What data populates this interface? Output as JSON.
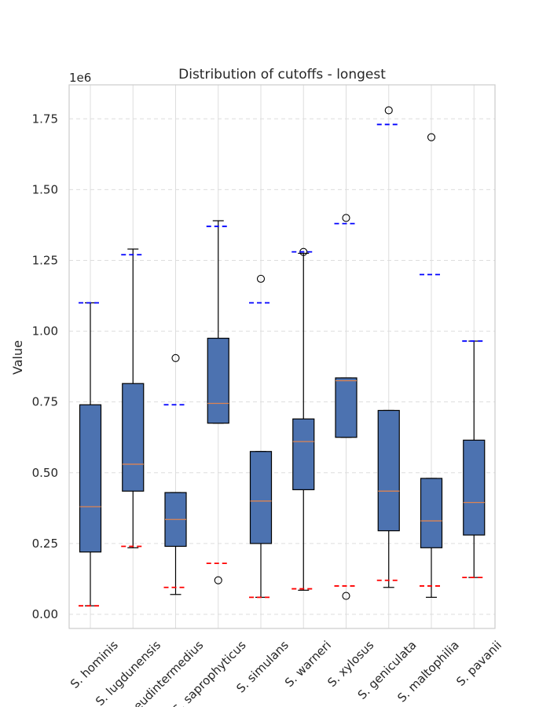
{
  "chart_data": {
    "type": "box",
    "title": "Distribution of cutoffs - longest",
    "ylabel": "Value",
    "xlabel": "",
    "y_offset_label": "1e6",
    "ylim": [
      -0.05,
      1.87
    ],
    "yticks": [
      0.0,
      0.25,
      0.5,
      0.75,
      1.0,
      1.25,
      1.5,
      1.75
    ],
    "ytick_labels": [
      "0.00",
      "0.25",
      "0.50",
      "0.75",
      "1.00",
      "1.25",
      "1.50",
      "1.75"
    ],
    "grid": true,
    "colors": {
      "box_fill": "#4c72b0",
      "median": "#dd8452",
      "min_marker": "#ff0000",
      "max_marker": "#0000ff",
      "grid": "#dddddd",
      "frame": "#cccccc"
    },
    "categories": [
      "S. hominis",
      "S. lugdunensis",
      "S. pseudintermedius",
      "S. saprophyticus",
      "S. simulans",
      "S. warneri",
      "S. xylosus",
      "S. geniculata",
      "S. maltophilia",
      "S. pavanii"
    ],
    "boxes": [
      {
        "whisker_low": 0.03,
        "q1": 0.22,
        "median": 0.38,
        "q3": 0.74,
        "whisker_high": 1.1,
        "outliers": [],
        "min_marker": 0.03,
        "max_marker": 1.1
      },
      {
        "whisker_low": 0.235,
        "q1": 0.435,
        "median": 0.53,
        "q3": 0.815,
        "whisker_high": 1.29,
        "outliers": [],
        "min_marker": 0.24,
        "max_marker": 1.27
      },
      {
        "whisker_low": 0.07,
        "q1": 0.24,
        "median": 0.335,
        "q3": 0.43,
        "whisker_high": 0.43,
        "outliers": [
          0.905
        ],
        "min_marker": 0.095,
        "max_marker": 0.74
      },
      {
        "whisker_low": 0.675,
        "q1": 0.675,
        "median": 0.745,
        "q3": 0.975,
        "whisker_high": 1.39,
        "outliers": [
          0.12
        ],
        "min_marker": 0.18,
        "max_marker": 1.37
      },
      {
        "whisker_low": 0.06,
        "q1": 0.25,
        "median": 0.4,
        "q3": 0.575,
        "whisker_high": 0.575,
        "outliers": [
          1.185
        ],
        "min_marker": 0.06,
        "max_marker": 1.1
      },
      {
        "whisker_low": 0.085,
        "q1": 0.44,
        "median": 0.61,
        "q3": 0.69,
        "whisker_high": 1.275,
        "outliers": [
          1.28
        ],
        "min_marker": 0.09,
        "max_marker": 1.28
      },
      {
        "whisker_low": 0.625,
        "q1": 0.625,
        "median": 0.825,
        "q3": 0.835,
        "whisker_high": 0.835,
        "outliers": [
          1.4,
          0.065
        ],
        "min_marker": 0.1,
        "max_marker": 1.38
      },
      {
        "whisker_low": 0.095,
        "q1": 0.295,
        "median": 0.435,
        "q3": 0.72,
        "whisker_high": 0.72,
        "outliers": [
          1.78
        ],
        "min_marker": 0.12,
        "max_marker": 1.73
      },
      {
        "whisker_low": 0.06,
        "q1": 0.235,
        "median": 0.33,
        "q3": 0.48,
        "whisker_high": 0.48,
        "outliers": [
          1.685
        ],
        "min_marker": 0.1,
        "max_marker": 1.2
      },
      {
        "whisker_low": 0.13,
        "q1": 0.28,
        "median": 0.395,
        "q3": 0.615,
        "whisker_high": 0.965,
        "outliers": [],
        "min_marker": 0.13,
        "max_marker": 0.965
      }
    ]
  }
}
